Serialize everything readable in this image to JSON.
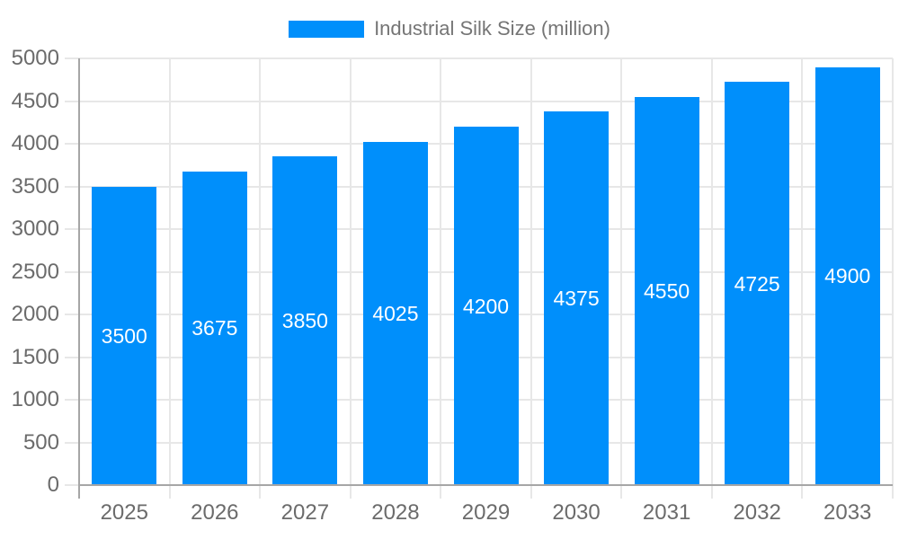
{
  "chart_data": {
    "type": "bar",
    "legend": "Industrial Silk Size (million)",
    "legend_position": "top",
    "categories": [
      "2025",
      "2026",
      "2027",
      "2028",
      "2029",
      "2030",
      "2031",
      "2032",
      "2033"
    ],
    "series": [
      {
        "name": "Industrial Silk Size (million)",
        "values": [
          3500,
          3675,
          3850,
          4025,
          4200,
          4375,
          4550,
          4725,
          4900
        ]
      }
    ],
    "xlabel": "",
    "ylabel": "",
    "ylim": [
      0,
      5000
    ],
    "ytick_step": 500,
    "ytick_labels": [
      "0",
      "500",
      "1000",
      "1500",
      "2000",
      "2500",
      "3000",
      "3500",
      "4000",
      "4500",
      "5000"
    ],
    "grid": true,
    "bar_value_labels_visible": true
  },
  "colors": {
    "bar": "#008FFB",
    "grid": "#e7e7e7",
    "axis": "#a6a6a6",
    "tick_label": "#6b6b6b",
    "legend_text": "#757575",
    "bar_label": "#ffffff",
    "background": "#ffffff"
  }
}
